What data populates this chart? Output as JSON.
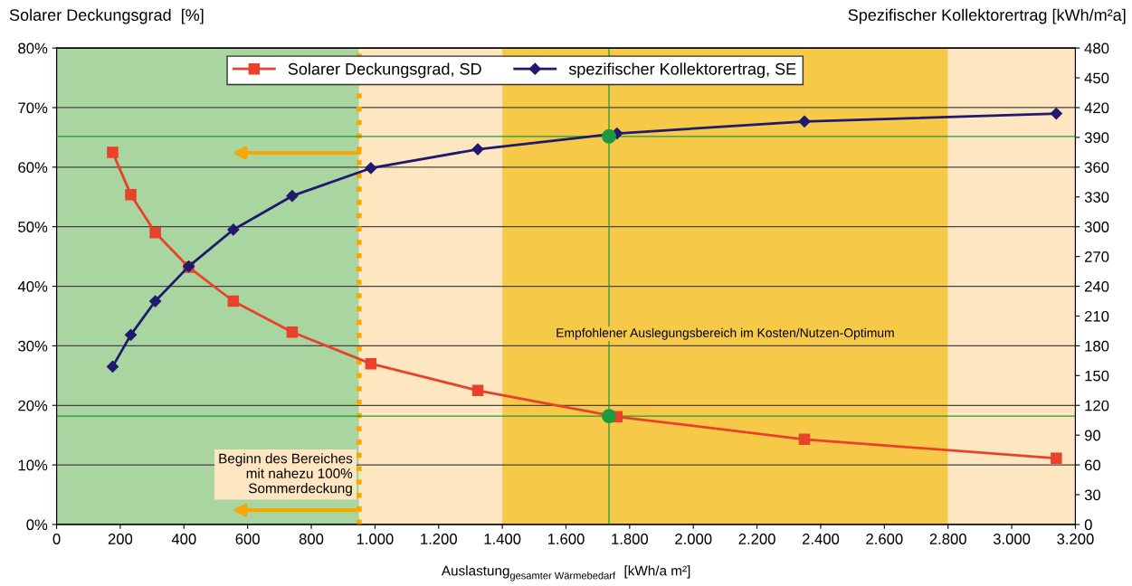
{
  "chart_data": {
    "type": "line",
    "xlabel": "Auslastung$_{gesamter Wärmebedarf}$  [kWh/a m²]",
    "ylabel": "Solarer Deckungsgrad  [%]",
    "y2label": "Spezifischer Kollektorertrag [kWh/m²a]",
    "x": [
      176,
      233,
      310,
      415,
      555,
      740,
      987,
      1323,
      1760,
      2349,
      3140
    ],
    "series": [
      {
        "name": "Solarer Deckungsgrad, SD",
        "color": "#e8412c",
        "marker": "square",
        "values": [
          62.5,
          55.4,
          49.0,
          43.2,
          37.5,
          32.3,
          27.0,
          22.5,
          18.1,
          14.3,
          11.1
        ]
      },
      {
        "name": "spezifischer Kollektorertrag, SE",
        "color": "#1f1a6e",
        "marker": "diamond",
        "axis": "y2",
        "values": [
          159,
          191,
          225,
          260,
          297,
          331,
          359,
          378,
          394,
          406,
          414
        ]
      },
      {
        "type": "scatter",
        "color": "#1e9a3c",
        "marker": "circle",
        "x": [
          1735
        ],
        "values": [
          18.2
        ]
      },
      {
        "type": "scatter",
        "color": "#1e9a3c",
        "marker": "circle",
        "axis": "y2",
        "x": [
          1735
        ],
        "values": [
          391
        ]
      }
    ],
    "xlim": [
      0,
      3200
    ],
    "xticks": [
      0,
      200,
      400,
      600,
      800,
      {
        "value": 1000,
        "label": "1.000"
      },
      {
        "value": 1200,
        "label": "1.200"
      },
      {
        "value": 1400,
        "label": "1.400"
      },
      {
        "value": 1600,
        "label": "1.600"
      },
      {
        "value": 1800,
        "label": "1.800"
      },
      {
        "value": 2000,
        "label": "2.000"
      },
      {
        "value": 2200,
        "label": "2.200"
      },
      {
        "value": 2400,
        "label": "2.400"
      },
      {
        "value": 2600,
        "label": "2.600"
      },
      {
        "value": 2800,
        "label": "2.800"
      },
      {
        "value": 3000,
        "label": "3.000"
      },
      {
        "value": 3200,
        "label": "3.200"
      }
    ],
    "ylim": [
      0,
      80
    ],
    "yticks": [
      {
        "value": 0,
        "label": "0%"
      },
      {
        "value": 10,
        "label": "10%"
      },
      {
        "value": 20,
        "label": "20%"
      },
      {
        "value": 30,
        "label": "30%"
      },
      {
        "value": 40,
        "label": "40%"
      },
      {
        "value": 50,
        "label": "50%"
      },
      {
        "value": 60,
        "label": "60%"
      },
      {
        "value": 70,
        "label": "70%"
      },
      {
        "value": 80,
        "label": "80%"
      }
    ],
    "y2lim": [
      0,
      480
    ],
    "y2ticks": [
      0,
      30,
      60,
      90,
      120,
      150,
      180,
      210,
      240,
      270,
      300,
      330,
      360,
      390,
      420,
      450,
      480
    ],
    "bands": [
      {
        "axis": "x",
        "from": 0,
        "to": 950,
        "color": "#a8d5a0"
      },
      {
        "axis": "x",
        "from": 950,
        "to": 1400,
        "color": "#fde6c0"
      },
      {
        "axis": "x",
        "from": 1400,
        "to": 2800,
        "color": "#f7c948",
        "label": "Empfohlener Auslegungsbereich im Kosten/Nutzen-Optimum"
      },
      {
        "axis": "x",
        "from": 2800,
        "to": 3200,
        "color": "#fde6c0"
      }
    ],
    "ref_lines": [
      {
        "axis": "x",
        "value": 950,
        "color": "#f5a800",
        "line_style": "dotted",
        "label": "Beginn des Bereiches\nmit nahezu 100%\nSommerdeckung"
      },
      {
        "axis": "x",
        "value": 1735,
        "color": "#1e9a3c",
        "line_style": "solid"
      },
      {
        "axis": "y",
        "value": 18.2,
        "color": "#1e9a3c",
        "line_style": "solid"
      },
      {
        "axis": "y2",
        "value": 391,
        "color": "#1e9a3c",
        "line_style": "solid"
      }
    ],
    "grid": "y",
    "legend": "top"
  }
}
